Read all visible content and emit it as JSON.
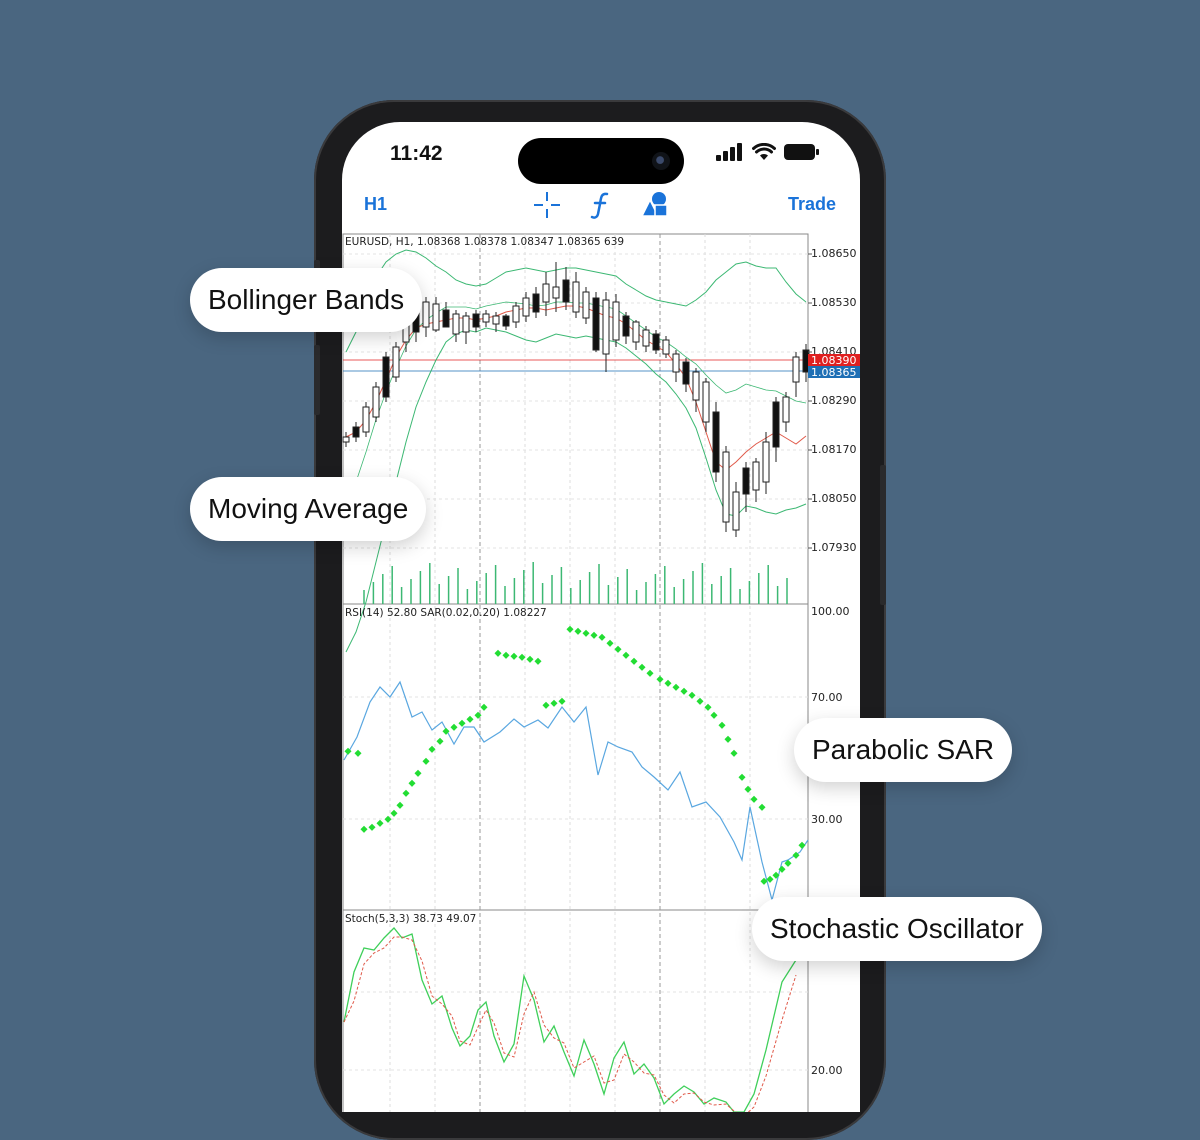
{
  "status_bar": {
    "time": "11:42"
  },
  "toolbar": {
    "timeframe_label": "H1",
    "crosshair_icon": "crosshair-icon",
    "indicators_icon": "function-icon",
    "objects_icon": "shapes-icon",
    "trade_label": "Trade",
    "accent_color": "#1a73d9"
  },
  "main_chart": {
    "header": "EURUSD, H1, 1.08368 1.08378 1.08347 1.08365 639",
    "price_labels": [
      "1.08650",
      "1.08530",
      "1.08410",
      "1.08290",
      "1.08170",
      "1.08050",
      "1.07930"
    ],
    "bid_line_label": "1.08390",
    "ask_line_label": "1.08365",
    "bid_color": "#e02020",
    "ask_color": "#1e6fb5"
  },
  "rsi_panel": {
    "header": "RSI(14) 52.80 SAR(0.02,0.20) 1.08227",
    "labels": [
      "100.00",
      "70.00",
      "30.00"
    ]
  },
  "stoch_panel": {
    "header": "Stoch(5,3,3) 38.73 49.07",
    "labels": [
      "20.00"
    ]
  },
  "callouts": {
    "bollinger": "Bollinger Bands",
    "moving_average": "Moving Average",
    "parabolic_sar": "Parabolic SAR",
    "stochastic": "Stochastic Oscillator"
  }
}
